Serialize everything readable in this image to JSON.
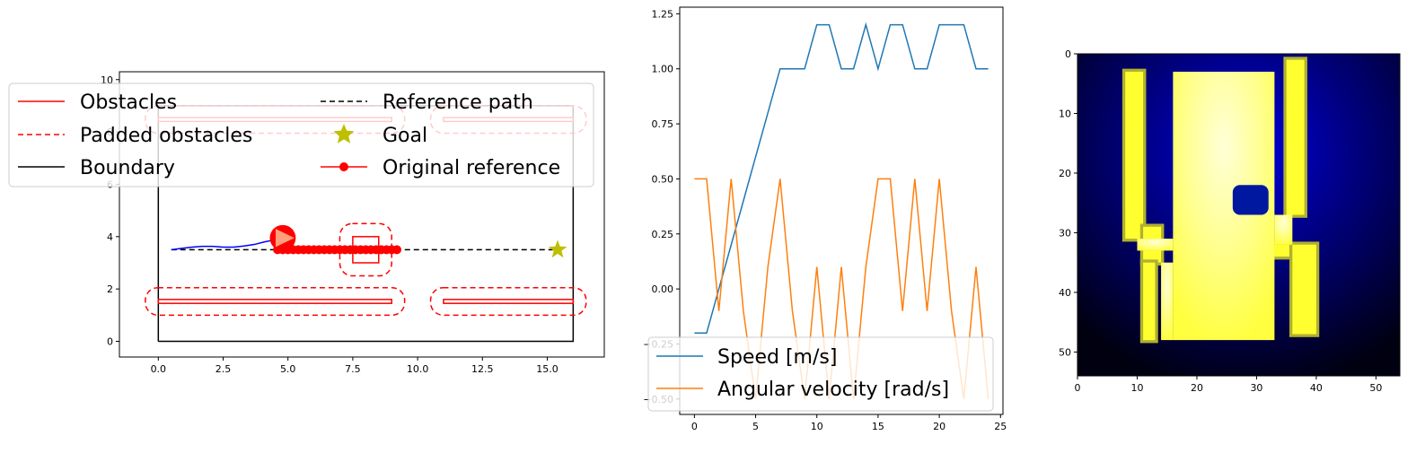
{
  "chart_data": [
    {
      "type": "line",
      "panel": "map",
      "xlim": [
        -1.5,
        17.2
      ],
      "ylim": [
        -0.6,
        10.3
      ],
      "xticks": [
        0.0,
        2.5,
        5.0,
        7.5,
        10.0,
        12.5,
        15.0
      ],
      "yticks": [
        0,
        2,
        4,
        6,
        8,
        10
      ],
      "xtick_labels": [
        "0.0",
        "2.5",
        "5.0",
        "7.5",
        "10.0",
        "12.5",
        "15.0"
      ],
      "ytick_labels": [
        "0",
        "2",
        "4",
        "6",
        "8",
        "10"
      ],
      "legend": {
        "placement": "upper-center",
        "entries": [
          "Obstacles",
          "Reference path",
          "Padded obstacles",
          "Goal",
          "Boundary",
          "Original reference"
        ]
      },
      "colors": {
        "obstacles": "#ff0000",
        "padded": "#ff0000",
        "boundary": "#000000",
        "reference": "#000000",
        "goal": "#bfbf00",
        "original": "#ff0000",
        "trajectory": "#0000ff",
        "robot": "#ff0000",
        "robot_arrow": "#ffa07a"
      },
      "boundary": [
        [
          0,
          0
        ],
        [
          16,
          0
        ],
        [
          16,
          9
        ],
        [
          0,
          9
        ],
        [
          0,
          0
        ]
      ],
      "obstacles": [
        {
          "x0": 0,
          "x1": 9,
          "y0": 1.45,
          "y1": 1.6
        },
        {
          "x0": 11,
          "x1": 16,
          "y0": 1.45,
          "y1": 1.6
        },
        {
          "x0": 0,
          "x1": 9,
          "y0": 8.4,
          "y1": 8.55
        },
        {
          "x0": 11,
          "x1": 16,
          "y0": 8.4,
          "y1": 8.55
        },
        {
          "x0": 7.5,
          "x1": 8.5,
          "y0": 3.0,
          "y1": 4.0
        }
      ],
      "padded_obstacles": [
        {
          "x0": -0.5,
          "x1": 9.5,
          "y0": 1.0,
          "y1": 2.05
        },
        {
          "x0": 10.5,
          "x1": 16.5,
          "y0": 1.0,
          "y1": 2.05
        },
        {
          "x0": -0.5,
          "x1": 9.5,
          "y0": 7.95,
          "y1": 9.0
        },
        {
          "x0": 10.5,
          "x1": 16.5,
          "y0": 7.95,
          "y1": 9.0
        },
        {
          "x0": 7.0,
          "x1": 9.0,
          "y0": 2.5,
          "y1": 4.5
        }
      ],
      "reference_path": {
        "x": [
          0.5,
          15.5
        ],
        "y": [
          3.5,
          3.5
        ]
      },
      "goal": {
        "x": 15.4,
        "y": 3.5
      },
      "original_reference": {
        "x": [
          4.6,
          4.8,
          5.0,
          5.2,
          5.4,
          5.6,
          5.8,
          6.0,
          6.2,
          6.4,
          6.6,
          6.8,
          7.0,
          7.2,
          7.4,
          7.6,
          7.8,
          8.0,
          8.2,
          8.4,
          8.6,
          8.8,
          9.0,
          9.2
        ],
        "y": [
          3.5,
          3.5,
          3.5,
          3.5,
          3.5,
          3.5,
          3.5,
          3.5,
          3.5,
          3.5,
          3.5,
          3.5,
          3.5,
          3.5,
          3.5,
          3.5,
          3.5,
          3.5,
          3.5,
          3.5,
          3.5,
          3.5,
          3.5,
          3.5
        ]
      },
      "trajectory": {
        "x": [
          0.5,
          0.9,
          1.3,
          1.7,
          2.1,
          2.5,
          2.9,
          3.3,
          3.7,
          4.1,
          4.5,
          4.8
        ],
        "y": [
          3.5,
          3.55,
          3.6,
          3.63,
          3.63,
          3.6,
          3.6,
          3.64,
          3.7,
          3.8,
          3.88,
          3.95
        ]
      },
      "robot": {
        "x": 4.8,
        "y": 3.95,
        "radius": 0.5,
        "heading": 0.0
      }
    },
    {
      "type": "line",
      "panel": "controls",
      "xlim": [
        -1.2,
        25.2
      ],
      "ylim": [
        -0.57,
        1.28
      ],
      "xticks": [
        0,
        5,
        10,
        15,
        20,
        25
      ],
      "yticks": [
        -0.5,
        -0.25,
        0.0,
        0.25,
        0.5,
        0.75,
        1.0,
        1.25
      ],
      "xtick_labels": [
        "0",
        "5",
        "10",
        "15",
        "20",
        "25"
      ],
      "ytick_labels": [
        "−0.50",
        "−0.25",
        "0.00",
        "0.25",
        "0.50",
        "0.75",
        "1.00",
        "1.25"
      ],
      "legend": {
        "placement": "lower-left",
        "entries": [
          "Speed [m/s]",
          "Angular velocity [rad/s]"
        ]
      },
      "series": [
        {
          "name": "Speed [m/s]",
          "color": "#1f77b4",
          "x": [
            0,
            1,
            2,
            3,
            4,
            5,
            6,
            7,
            8,
            9,
            10,
            11,
            12,
            13,
            14,
            15,
            16,
            17,
            18,
            19,
            20,
            21,
            22,
            23,
            24
          ],
          "y": [
            -0.2,
            -0.2,
            0.0,
            0.2,
            0.4,
            0.6,
            0.8,
            1.0,
            1.0,
            1.0,
            1.2,
            1.2,
            1.0,
            1.0,
            1.2,
            1.0,
            1.2,
            1.2,
            1.0,
            1.0,
            1.2,
            1.2,
            1.2,
            1.0,
            1.0
          ]
        },
        {
          "name": "Angular velocity [rad/s]",
          "color": "#ff7f0e",
          "x": [
            0,
            1,
            2,
            3,
            4,
            5,
            6,
            7,
            8,
            9,
            10,
            11,
            12,
            13,
            14,
            15,
            16,
            17,
            18,
            19,
            20,
            21,
            22,
            23,
            24
          ],
          "y": [
            0.5,
            0.5,
            -0.1,
            0.5,
            -0.1,
            -0.5,
            0.1,
            0.5,
            -0.1,
            -0.5,
            0.1,
            -0.5,
            0.1,
            -0.5,
            0.1,
            0.5,
            0.5,
            -0.1,
            0.5,
            -0.1,
            0.5,
            -0.1,
            -0.5,
            0.1,
            -0.5
          ]
        }
      ]
    },
    {
      "type": "heatmap",
      "panel": "costmap",
      "xlim": [
        0,
        54
      ],
      "ylim": [
        54,
        0
      ],
      "xticks": [
        0,
        10,
        20,
        30,
        40,
        50
      ],
      "yticks": [
        0,
        10,
        20,
        30,
        40,
        50
      ],
      "xtick_labels": [
        "0",
        "10",
        "20",
        "30",
        "40",
        "50"
      ],
      "ytick_labels": [
        "0",
        "10",
        "20",
        "30",
        "40",
        "50"
      ],
      "colors": {
        "background_dark": "#000010",
        "blue_glow": "#0000d0",
        "wall": "#ffff30",
        "wall_dark": "#b0b030",
        "free_light": "#ffffc0",
        "free": "#ffff70",
        "obstacle_blob": "#0018a0"
      },
      "walls": [
        {
          "x0": 8,
          "x1": 11,
          "y0": 3,
          "y1": 31
        },
        {
          "x0": 11,
          "x1": 14,
          "y0": 29,
          "y1": 31
        },
        {
          "x0": 11,
          "x1": 14,
          "y0": 33,
          "y1": 35
        },
        {
          "x0": 11,
          "x1": 13,
          "y0": 35,
          "y1": 48
        },
        {
          "x0": 35,
          "x1": 38,
          "y0": 1,
          "y1": 27
        },
        {
          "x0": 33,
          "x1": 36,
          "y0": 32,
          "y1": 34
        },
        {
          "x0": 36,
          "x1": 40,
          "y0": 32,
          "y1": 47
        }
      ],
      "free_region": [
        {
          "x0": 16,
          "x1": 33,
          "y0": 3,
          "y1": 48
        },
        {
          "x0": 10,
          "x1": 16,
          "y0": 31,
          "y1": 33
        },
        {
          "x0": 33,
          "x1": 36,
          "y0": 27,
          "y1": 32
        },
        {
          "x0": 14,
          "x1": 16,
          "y0": 35,
          "y1": 48
        }
      ],
      "light_center": {
        "x": 25,
        "y": 16
      },
      "blob": {
        "x0": 26,
        "x1": 32,
        "y0": 22,
        "y1": 27
      }
    }
  ]
}
